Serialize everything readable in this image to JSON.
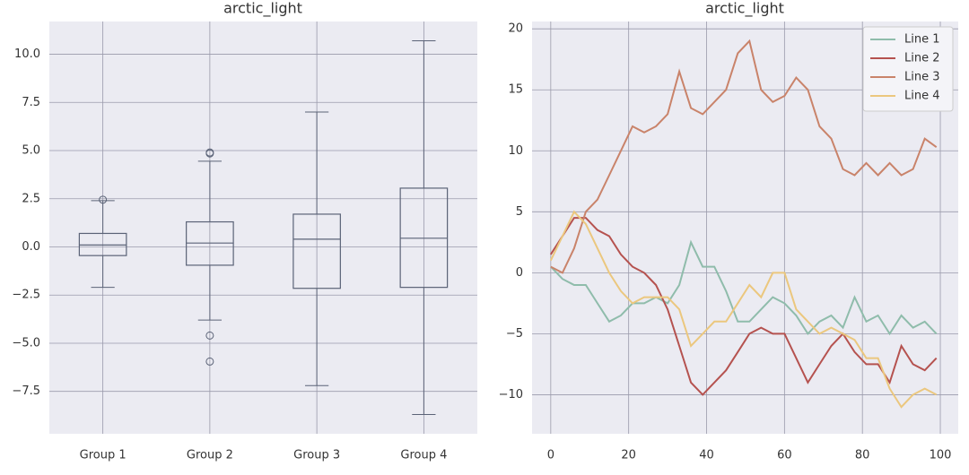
{
  "chart_data": [
    {
      "type": "box",
      "title": "arctic_light",
      "categories": [
        "Group 1",
        "Group 2",
        "Group 3",
        "Group 4"
      ],
      "groups": [
        {
          "low": -2.1,
          "q1": -0.45,
          "median": 0.1,
          "q3": 0.7,
          "high": 2.4,
          "outliers": [
            2.45
          ]
        },
        {
          "low": -3.8,
          "q1": -0.95,
          "median": 0.2,
          "q3": 1.3,
          "high": 4.45,
          "outliers": [
            4.9,
            4.85,
            -4.6,
            -5.95
          ]
        },
        {
          "low": -7.2,
          "q1": -2.15,
          "median": 0.4,
          "q3": 1.7,
          "high": 7.0,
          "outliers": []
        },
        {
          "low": -8.7,
          "q1": -2.1,
          "median": 0.45,
          "q3": 3.05,
          "high": 10.7,
          "outliers": []
        }
      ],
      "color": "#5b6377",
      "ylim": [
        -9.7,
        11.7
      ],
      "yticks": [
        {
          "value": -7.5,
          "label": "−7.5"
        },
        {
          "value": -5,
          "label": "−5.0"
        },
        {
          "value": -2.5,
          "label": "−2.5"
        },
        {
          "value": 0,
          "label": "0.0"
        },
        {
          "value": 2.5,
          "label": "2.5"
        },
        {
          "value": 5,
          "label": "5.0"
        },
        7.5,
        {
          "value": 10,
          "label": "10.0"
        }
      ],
      "grid": true
    },
    {
      "type": "line",
      "title": "arctic_light",
      "x": [
        0,
        3,
        6,
        9,
        12,
        15,
        18,
        21,
        24,
        27,
        30,
        33,
        36,
        39,
        42,
        45,
        48,
        51,
        54,
        57,
        60,
        63,
        66,
        69,
        72,
        75,
        78,
        81,
        84,
        87,
        90,
        93,
        96,
        99
      ],
      "series": [
        {
          "name": "Line 1",
          "color": "#8fbcab",
          "values": [
            0.5,
            -0.5,
            -1,
            -1,
            -2.5,
            -4,
            -3.5,
            -2.5,
            -2.5,
            -2,
            -2.5,
            -1,
            2.5,
            0.5,
            0.5,
            -1.5,
            -4,
            -4,
            -3,
            -2,
            -2.5,
            -3.5,
            -5,
            -4,
            -3.5,
            -4.5,
            -2,
            -4,
            -3.5,
            -5,
            -3.5,
            -4.5,
            -4,
            -5
          ]
        },
        {
          "name": "Line 2",
          "color": "#b5524f",
          "values": [
            1.5,
            3,
            4.5,
            4.5,
            3.5,
            3,
            1.5,
            0.5,
            0,
            -1,
            -3,
            -6,
            -9,
            -10,
            -9,
            -8,
            -6.5,
            -5,
            -4.5,
            -5,
            -5,
            -7,
            -9,
            -7.5,
            -6,
            -5,
            -6.5,
            -7.5,
            -7.5,
            -9,
            -6,
            -7.5,
            -8,
            -7
          ]
        },
        {
          "name": "Line 3",
          "color": "#c9836a",
          "values": [
            0.5,
            0,
            2,
            5,
            6,
            8,
            10,
            12,
            11.5,
            12,
            13,
            16.5,
            13.5,
            13,
            14,
            15,
            18,
            19,
            15,
            14,
            14.5,
            16,
            15,
            12,
            11,
            8.5,
            8,
            9,
            8,
            9,
            8,
            8.5,
            11,
            10.3
          ]
        },
        {
          "name": "Line 4",
          "color": "#ebc77e",
          "values": [
            1,
            3,
            5,
            4,
            2,
            0,
            -1.5,
            -2.5,
            -2,
            -2,
            -2,
            -3,
            -6,
            -5,
            -4,
            -4,
            -2.5,
            -1,
            -2,
            0,
            0,
            -3,
            -4,
            -5,
            -4.5,
            -5,
            -5.5,
            -7,
            -7,
            -9.5,
            -11,
            -10,
            -9.5,
            -10
          ]
        }
      ],
      "xlim": [
        -4.8,
        104.6
      ],
      "xticks": [
        0,
        20,
        40,
        60,
        80,
        100
      ],
      "ylim": [
        -13.2,
        20.6
      ],
      "yticks": [
        {
          "value": -10,
          "label": "−10"
        },
        {
          "value": -5,
          "label": "−5"
        },
        0,
        5,
        10,
        15,
        20
      ],
      "grid": true,
      "legend": "upper right"
    }
  ]
}
